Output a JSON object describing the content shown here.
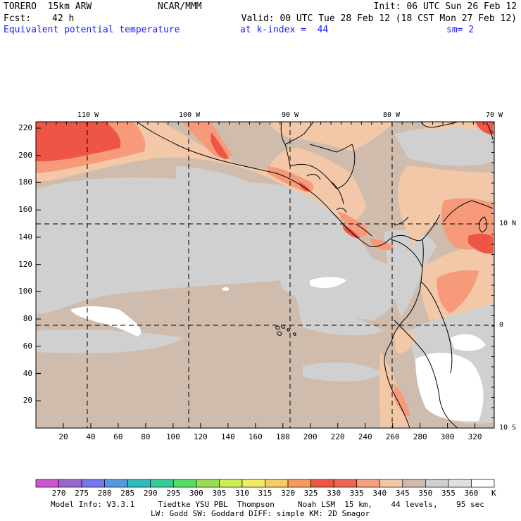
{
  "header": {
    "model": "TORERO  15km ARW",
    "org": "NCAR/MMM",
    "init": "Init: 06 UTC Sun 26 Feb 12",
    "fcst_label": "Fcst:",
    "fcst_value": "42 h",
    "valid": "Valid: 00 UTC Tue 28 Feb 12 (18 CST Mon 27 Feb 12)",
    "field": "Equivalent potential temperature",
    "level": "at k-index =  44",
    "smooth": "sm= 2"
  },
  "map": {
    "top_lon_labels": [
      "110 W",
      "100 W",
      "90 W",
      "80 W",
      "70 W"
    ],
    "right_lat_labels": [
      "10 N",
      "0",
      "10 S"
    ],
    "left_grid_labels": [
      "220",
      "200",
      "180",
      "160",
      "140",
      "120",
      "100",
      "80",
      "60",
      "40",
      "20"
    ],
    "bottom_grid_labels": [
      "20",
      "40",
      "60",
      "80",
      "100",
      "120",
      "140",
      "160",
      "180",
      "200",
      "220",
      "240",
      "260",
      "280",
      "300",
      "320"
    ]
  },
  "colorbar": {
    "labels": [
      "270",
      "275",
      "280",
      "285",
      "290",
      "295",
      "300",
      "305",
      "310",
      "315",
      "320",
      "325",
      "330",
      "335",
      "340",
      "345",
      "350",
      "355",
      "360"
    ],
    "unit": "K",
    "colors": [
      "#cc55cc",
      "#9966cc",
      "#7777ee",
      "#5599dd",
      "#33bbbb",
      "#33cc99",
      "#55dd66",
      "#99dd55",
      "#ccee55",
      "#eeee66",
      "#f6cc66",
      "#f69a5a",
      "#ee5544",
      "#ee6655",
      "#f6a080",
      "#f2c8a8",
      "#cfbcac",
      "#d0d0d0",
      "#e0e0e0",
      "#ffffff"
    ]
  },
  "footer": {
    "line1": "Model Info: V3.3.1     Tiedtke YSU PBL  Thompson     Noah LSM  15 km,    44 levels,    95 sec",
    "line2": "LW: Godd SW: Goddard DIFF: simple KM: 2D Smagor"
  }
}
